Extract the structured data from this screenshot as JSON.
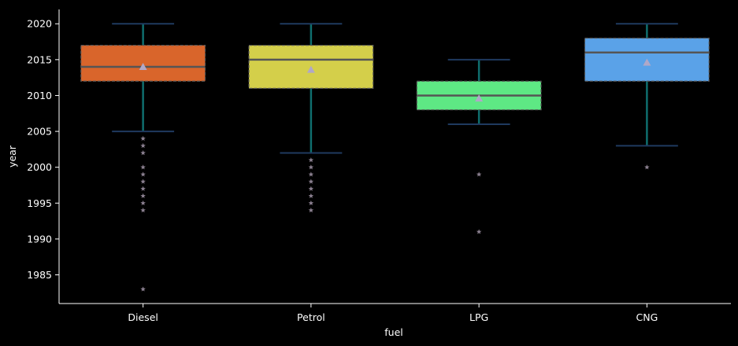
{
  "chart_data": {
    "type": "box",
    "xlabel": "fuel",
    "ylabel": "year",
    "ylim": [
      1981,
      2022
    ],
    "yticks": [
      1985,
      1990,
      1995,
      2000,
      2005,
      2010,
      2015,
      2020
    ],
    "grid": false,
    "categories": [
      "Diesel",
      "Petrol",
      "LPG",
      "CNG"
    ],
    "boxes": [
      {
        "category": "Diesel",
        "color": "#d9652b",
        "q1": 2012,
        "median": 2014,
        "q3": 2017,
        "whisker_low": 2005,
        "whisker_high": 2020,
        "mean": 2014.0,
        "outliers": [
          2004,
          2003,
          2002,
          2000,
          1999,
          1998,
          1997,
          1996,
          1995,
          1994,
          1983
        ]
      },
      {
        "category": "Petrol",
        "color": "#d4cf4a",
        "q1": 2011,
        "median": 2015,
        "q3": 2017,
        "whisker_low": 2002,
        "whisker_high": 2020,
        "mean": 2013.6,
        "outliers": [
          2001,
          2000,
          1999,
          1998,
          1997,
          1996,
          1995,
          1994
        ]
      },
      {
        "category": "LPG",
        "color": "#5ee884",
        "q1": 2008,
        "median": 2010,
        "q3": 2012,
        "whisker_low": 2006,
        "whisker_high": 2015,
        "mean": 2009.6,
        "outliers": [
          1999,
          1991
        ]
      },
      {
        "category": "CNG",
        "color": "#5aa2e8",
        "q1": 2012,
        "median": 2016,
        "q3": 2018,
        "whisker_low": 2003,
        "whisker_high": 2020,
        "mean": 2014.6,
        "outliers": [
          2000
        ]
      }
    ],
    "style": {
      "background": "#000000",
      "axis_color": "#ffffff",
      "whisker_color": "#0f6e6e",
      "cap_color": "#1f3a5f",
      "median_color": "#555555",
      "mean_marker_color": "#b0a8c8",
      "outlier_color": "#8a7f8f",
      "box_edge_color": "#555555"
    }
  }
}
